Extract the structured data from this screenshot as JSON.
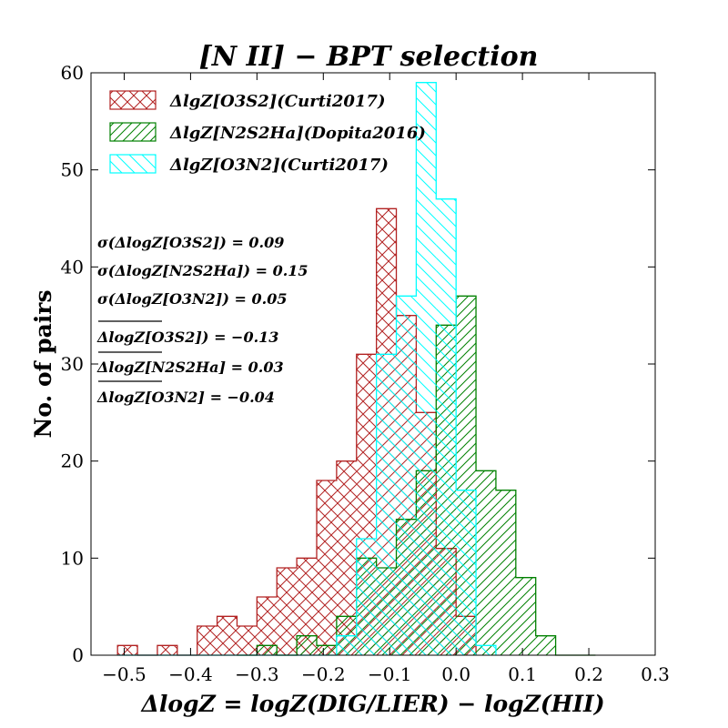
{
  "chart_data": {
    "type": "histogram",
    "title": "[N II] − BPT selection",
    "xlabel": "ΔlogZ = logZ(DIG/LIER) − logZ(HII)",
    "ylabel": "No. of pairs",
    "xlim": [
      -0.55,
      0.3
    ],
    "ylim": [
      0,
      60
    ],
    "xticks": [
      -0.5,
      -0.4,
      -0.3,
      -0.2,
      -0.1,
      0.0,
      0.1,
      0.2,
      0.3
    ],
    "xtick_labels": [
      "−0.5",
      "−0.4",
      "−0.3",
      "−0.2",
      "−0.1",
      "0.0",
      "0.1",
      "0.2",
      "0.3"
    ],
    "yticks": [
      0,
      10,
      20,
      30,
      40,
      50,
      60
    ],
    "ytick_labels": [
      "0",
      "10",
      "20",
      "30",
      "40",
      "50",
      "60"
    ],
    "series": [
      {
        "name": "ΔlgZ[O3S2](Curti2017)",
        "color": "#b22222",
        "hatch": "crosshatch",
        "bins": [
          [
            -0.51,
            -0.48,
            1
          ],
          [
            -0.48,
            -0.45,
            0
          ],
          [
            -0.45,
            -0.42,
            1
          ],
          [
            -0.42,
            -0.39,
            0
          ],
          [
            -0.39,
            -0.36,
            3
          ],
          [
            -0.36,
            -0.33,
            4
          ],
          [
            -0.33,
            -0.3,
            3
          ],
          [
            -0.3,
            -0.27,
            6
          ],
          [
            -0.27,
            -0.24,
            9
          ],
          [
            -0.24,
            -0.21,
            10
          ],
          [
            -0.21,
            -0.18,
            18
          ],
          [
            -0.18,
            -0.15,
            20
          ],
          [
            -0.15,
            -0.12,
            31
          ],
          [
            -0.12,
            -0.09,
            46
          ],
          [
            -0.09,
            -0.06,
            35
          ],
          [
            -0.06,
            -0.03,
            25
          ],
          [
            -0.03,
            0.0,
            11
          ],
          [
            0.0,
            0.03,
            4
          ]
        ]
      },
      {
        "name": "ΔlgZ[N2S2Ha](Dopita2016)",
        "color": "#008000",
        "hatch": "diagonal",
        "bins": [
          [
            -0.33,
            -0.3,
            0
          ],
          [
            -0.3,
            -0.27,
            1
          ],
          [
            -0.27,
            -0.24,
            0
          ],
          [
            -0.24,
            -0.21,
            2
          ],
          [
            -0.21,
            -0.18,
            1
          ],
          [
            -0.18,
            -0.15,
            4
          ],
          [
            -0.15,
            -0.12,
            10
          ],
          [
            -0.12,
            -0.09,
            9
          ],
          [
            -0.09,
            -0.06,
            14
          ],
          [
            -0.06,
            -0.03,
            19
          ],
          [
            -0.03,
            0.0,
            34
          ],
          [
            0.0,
            0.03,
            37
          ],
          [
            0.03,
            0.06,
            19
          ],
          [
            0.06,
            0.09,
            17
          ],
          [
            0.09,
            0.12,
            8
          ],
          [
            0.12,
            0.15,
            2
          ],
          [
            0.15,
            0.18,
            0
          ],
          [
            0.18,
            0.21,
            0
          ]
        ]
      },
      {
        "name": "ΔlgZ[O3N2](Curti2017)",
        "color": "#00ffff",
        "hatch": "antidiagonal",
        "bins": [
          [
            -0.51,
            -0.48,
            0
          ],
          [
            -0.48,
            -0.45,
            0
          ],
          [
            -0.45,
            -0.42,
            0
          ],
          [
            -0.42,
            -0.39,
            0
          ],
          [
            -0.39,
            -0.36,
            0
          ],
          [
            -0.36,
            -0.33,
            0
          ],
          [
            -0.33,
            -0.3,
            0
          ],
          [
            -0.3,
            -0.27,
            0
          ],
          [
            -0.27,
            -0.24,
            0
          ],
          [
            -0.24,
            -0.21,
            0
          ],
          [
            -0.21,
            -0.18,
            0
          ],
          [
            -0.18,
            -0.15,
            2
          ],
          [
            -0.15,
            -0.12,
            12
          ],
          [
            -0.12,
            -0.09,
            31
          ],
          [
            -0.09,
            -0.06,
            37
          ],
          [
            -0.06,
            -0.03,
            59
          ],
          [
            -0.03,
            0.0,
            47
          ],
          [
            0.0,
            0.03,
            17
          ],
          [
            0.03,
            0.06,
            1
          ]
        ]
      }
    ],
    "annotations": [
      "σ(ΔlogZ[O3S2]) = 0.09",
      "σ(ΔlogZ[N2S2Ha]) = 0.15",
      "σ(ΔlogZ[O3N2]) = 0.05",
      "ΔlogZ[O3S2]) = −0.13",
      "ΔlogZ[N2S2Ha] = 0.03",
      "ΔlogZ[O3N2] = −0.04"
    ],
    "legend_position": "top-left"
  }
}
